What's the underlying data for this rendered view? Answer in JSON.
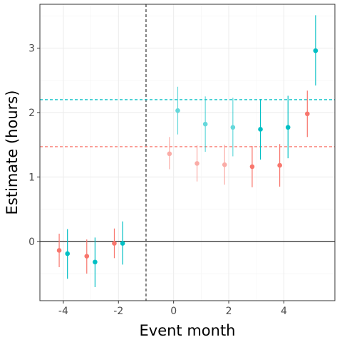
{
  "chart_data": {
    "type": "scatter",
    "xlabel": "Event month",
    "ylabel": "Estimate (hours)",
    "xlim": [
      -4.85,
      5.85
    ],
    "ylim": [
      -0.92,
      3.68
    ],
    "x_ticks": [
      -4,
      -2,
      0,
      2,
      4
    ],
    "x_tick_labels": [
      "-4",
      "-2",
      "0",
      "2",
      "4"
    ],
    "y_ticks": [
      0,
      1,
      2,
      3
    ],
    "y_tick_labels": [
      "0",
      "1",
      "2",
      "3"
    ],
    "grid": true,
    "legend": "none",
    "event_line_x": -1,
    "zero_line_y": 0,
    "colors": {
      "red": "#F8766D",
      "teal": "#00BFC4",
      "axis": "#333333",
      "zero": "#000000"
    },
    "series": [
      {
        "color": "#F8766D",
        "post_mean": 1.47,
        "points": [
          {
            "x": -4,
            "y": -0.14,
            "lo": -0.4,
            "hi": 0.12,
            "alpha": 1
          },
          {
            "x": -3,
            "y": -0.23,
            "lo": -0.5,
            "hi": 0.03,
            "alpha": 1
          },
          {
            "x": -2,
            "y": -0.03,
            "lo": -0.26,
            "hi": 0.2,
            "alpha": 1
          },
          {
            "x": 0,
            "y": 1.36,
            "lo": 1.12,
            "hi": 1.62,
            "alpha": 0.6
          },
          {
            "x": 1,
            "y": 1.21,
            "lo": 0.93,
            "hi": 1.49,
            "alpha": 0.6
          },
          {
            "x": 2,
            "y": 1.19,
            "lo": 0.88,
            "hi": 1.5,
            "alpha": 0.6
          },
          {
            "x": 3,
            "y": 1.16,
            "lo": 0.84,
            "hi": 1.48,
            "alpha": 1
          },
          {
            "x": 4,
            "y": 1.18,
            "lo": 0.85,
            "hi": 1.51,
            "alpha": 1
          },
          {
            "x": 5,
            "y": 1.98,
            "lo": 1.62,
            "hi": 2.34,
            "alpha": 1
          }
        ]
      },
      {
        "color": "#00BFC4",
        "post_mean": 2.2,
        "points": [
          {
            "x": -4,
            "y": -0.19,
            "lo": -0.58,
            "hi": 0.19,
            "alpha": 1
          },
          {
            "x": -3,
            "y": -0.32,
            "lo": -0.71,
            "hi": 0.06,
            "alpha": 1
          },
          {
            "x": -2,
            "y": -0.03,
            "lo": -0.36,
            "hi": 0.31,
            "alpha": 1
          },
          {
            "x": 0,
            "y": 2.03,
            "lo": 1.66,
            "hi": 2.4,
            "alpha": 0.6
          },
          {
            "x": 1,
            "y": 1.82,
            "lo": 1.39,
            "hi": 2.25,
            "alpha": 0.6
          },
          {
            "x": 2,
            "y": 1.77,
            "lo": 1.32,
            "hi": 2.23,
            "alpha": 0.6
          },
          {
            "x": 3,
            "y": 1.74,
            "lo": 1.27,
            "hi": 2.21,
            "alpha": 1
          },
          {
            "x": 4,
            "y": 1.77,
            "lo": 1.29,
            "hi": 2.26,
            "alpha": 1
          },
          {
            "x": 5,
            "y": 2.96,
            "lo": 2.42,
            "hi": 3.51,
            "alpha": 1
          }
        ]
      }
    ]
  }
}
